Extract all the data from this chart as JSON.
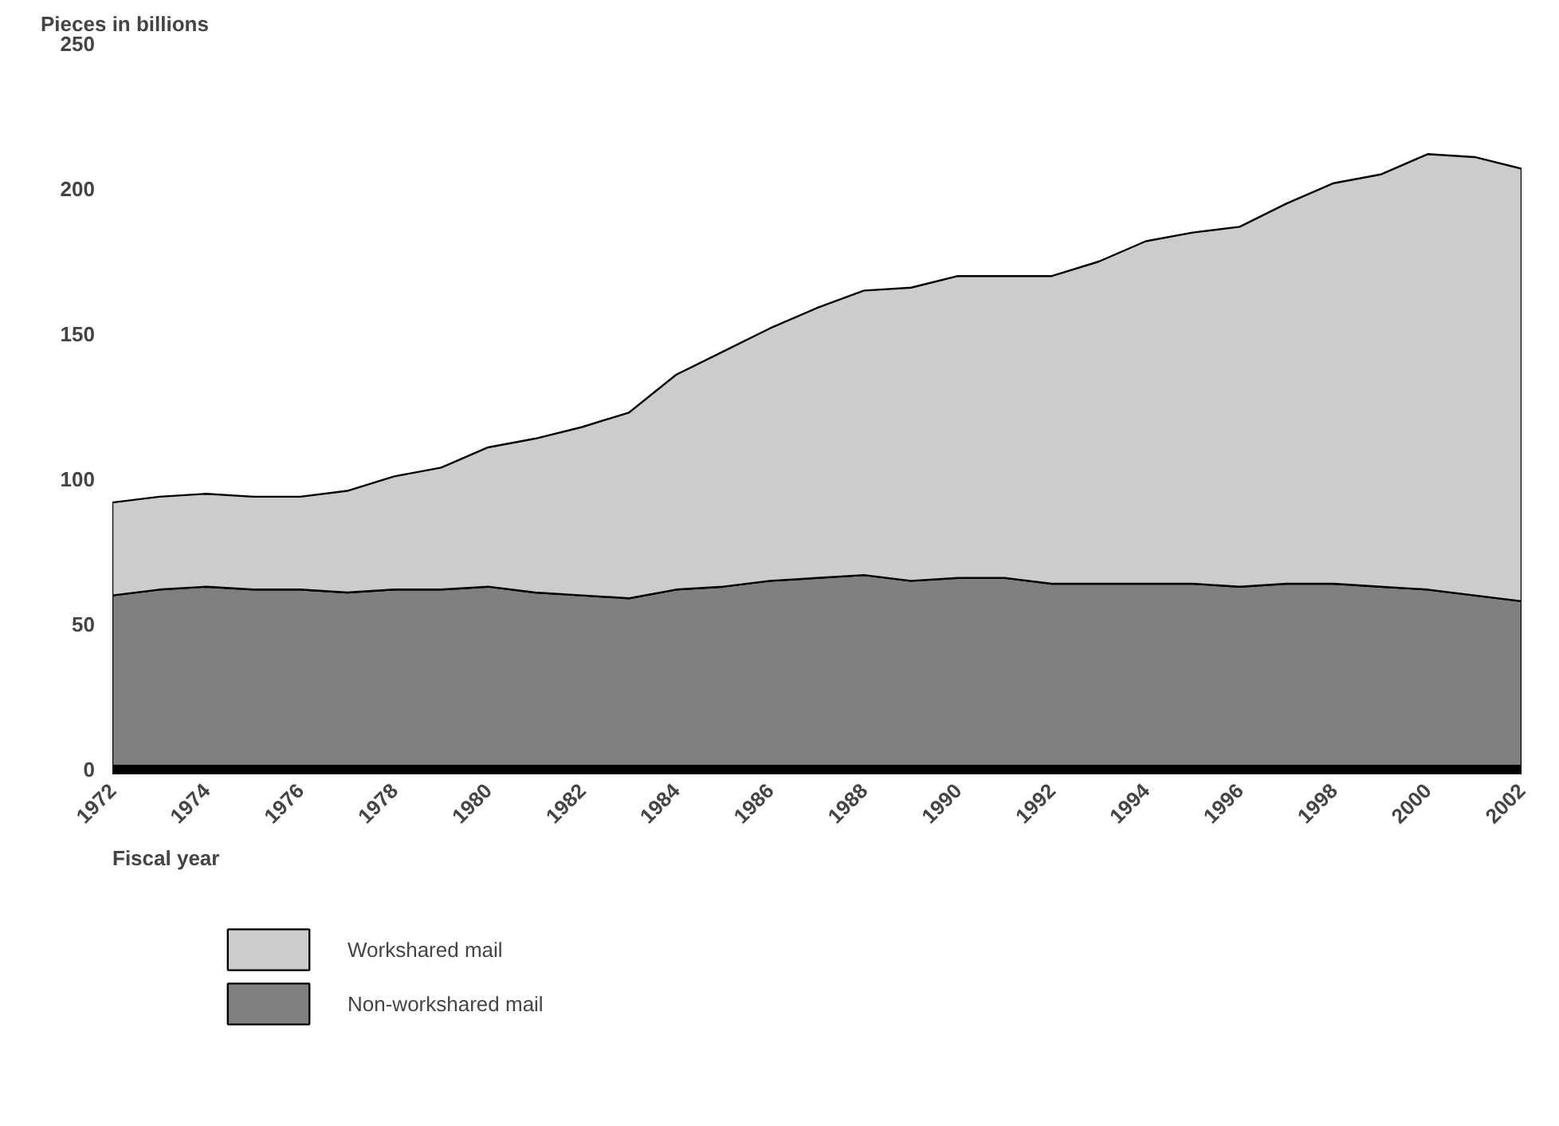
{
  "chart_data": {
    "type": "area",
    "stacked": true,
    "ylabel": "Pieces in billions",
    "xlabel": "Fiscal year",
    "x": [
      1972,
      1973,
      1974,
      1975,
      1976,
      1977,
      1978,
      1979,
      1980,
      1981,
      1982,
      1983,
      1984,
      1985,
      1986,
      1987,
      1988,
      1989,
      1990,
      1991,
      1992,
      1993,
      1994,
      1995,
      1996,
      1997,
      1998,
      1999,
      2000,
      2001,
      2002
    ],
    "series": [
      {
        "name": "Non-workshared mail",
        "color": "#808080",
        "values": [
          60,
          62,
          63,
          62,
          62,
          61,
          62,
          62,
          63,
          61,
          60,
          59,
          62,
          63,
          65,
          66,
          67,
          65,
          66,
          66,
          64,
          64,
          64,
          64,
          63,
          64,
          64,
          63,
          62,
          60,
          58
        ]
      },
      {
        "name": "Workshared mail",
        "color": "#cccccc",
        "values": [
          32,
          32,
          32,
          32,
          32,
          35,
          39,
          42,
          48,
          53,
          58,
          64,
          74,
          81,
          87,
          93,
          98,
          101,
          104,
          104,
          106,
          111,
          118,
          121,
          124,
          131,
          138,
          142,
          150,
          151,
          149
        ]
      }
    ],
    "xlim": [
      1972,
      2002
    ],
    "xticks": [
      1972,
      1974,
      1976,
      1978,
      1980,
      1982,
      1984,
      1986,
      1988,
      1990,
      1992,
      1994,
      1996,
      1998,
      2000,
      2002
    ],
    "ylim": [
      0,
      250
    ],
    "yticks": [
      0,
      50,
      100,
      150,
      200,
      250
    ],
    "grid": false,
    "legend": "bottom left"
  }
}
